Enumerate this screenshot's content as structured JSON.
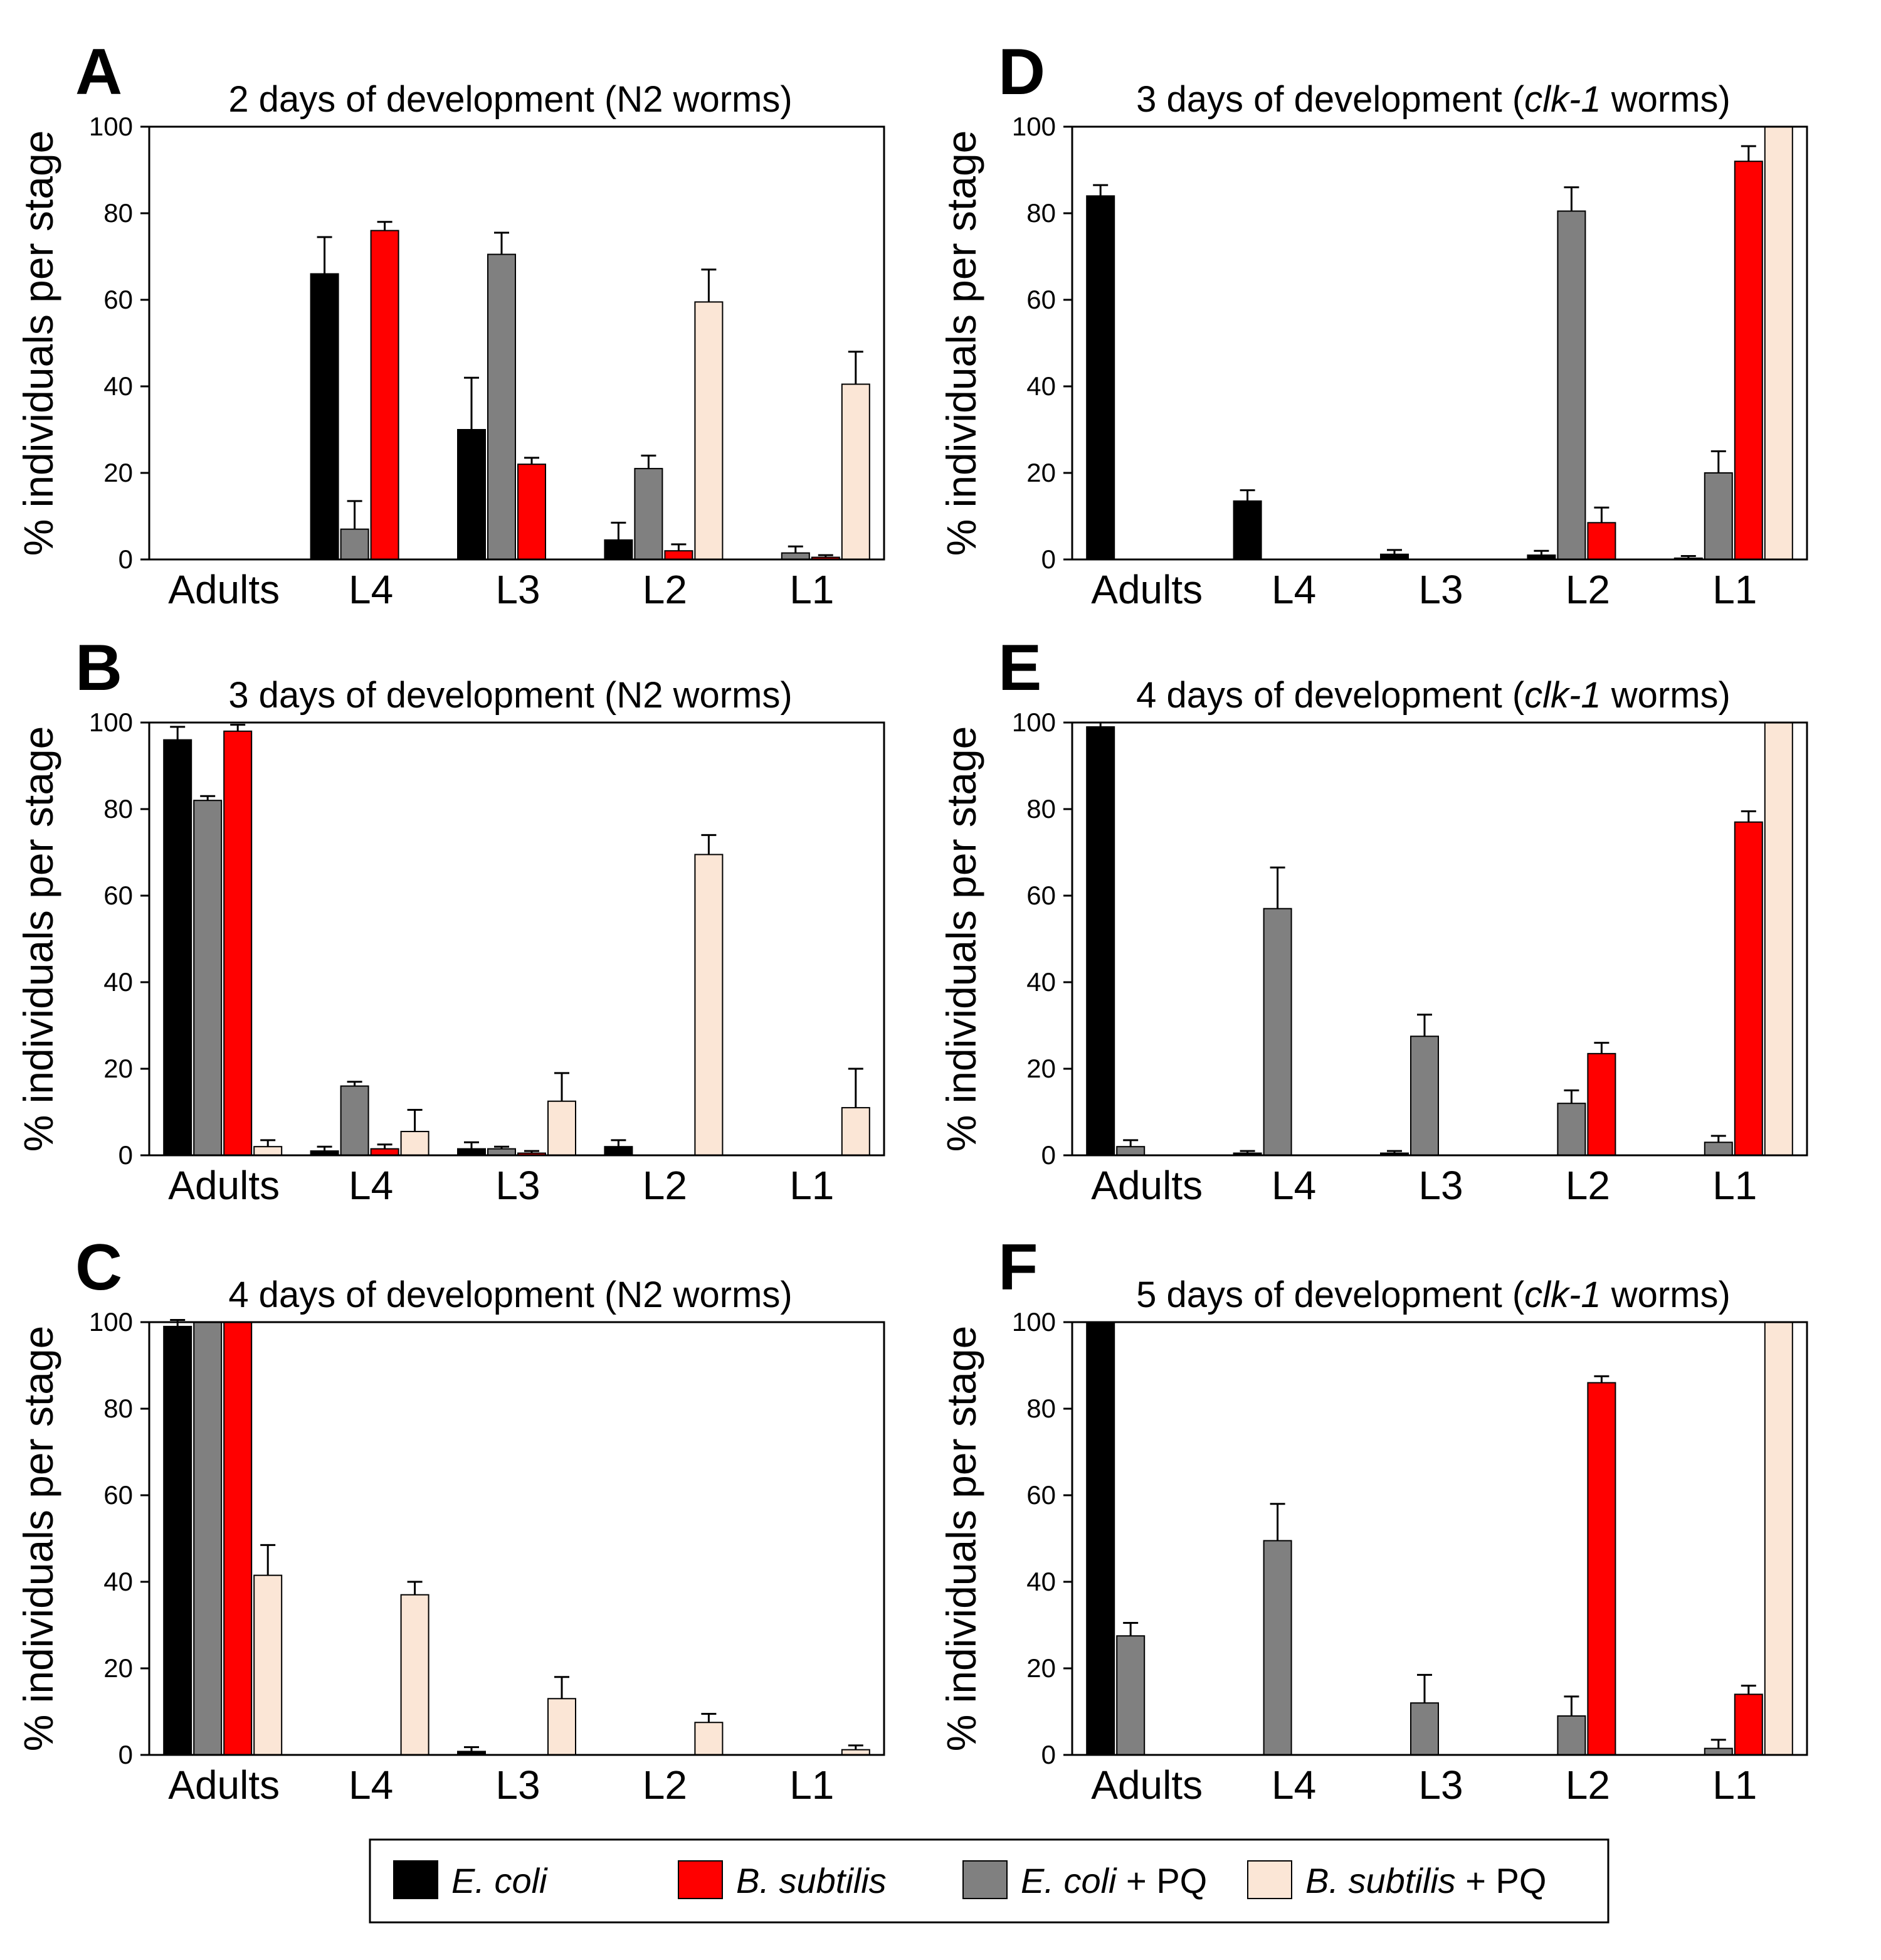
{
  "colors": {
    "E. coli": "#000000",
    "B. subtilis": "#ff0000",
    "E. coli + PQ": "#808080",
    "B. subtilis + PQ": "#fbe6d6"
  },
  "legend": [
    {
      "key": "E. coli",
      "parts": [
        {
          "text": "E. coli",
          "italic": true
        }
      ]
    },
    {
      "key": "B. subtilis",
      "parts": [
        {
          "text": "B. subtilis",
          "italic": true
        }
      ]
    },
    {
      "key": "E. coli + PQ",
      "parts": [
        {
          "text": "E. coli",
          "italic": true
        },
        {
          "text": " + PQ",
          "italic": false
        }
      ]
    },
    {
      "key": "B. subtilis + PQ",
      "parts": [
        {
          "text": "B. subtilis",
          "italic": true
        },
        {
          "text": " + PQ",
          "italic": false
        }
      ]
    }
  ],
  "chart_data": [
    {
      "panel": "A",
      "type": "bar",
      "title": "2 days of development (N2 worms)",
      "title_parts": [
        {
          "text": "2 days of development (N2 worms)",
          "italic": false
        }
      ],
      "ylabel": "% individuals per stage",
      "ylim": [
        0,
        100
      ],
      "yticks": [
        0,
        20,
        40,
        60,
        80,
        100
      ],
      "categories": [
        "Adults",
        "L4",
        "L3",
        "L2",
        "L1"
      ],
      "series": [
        {
          "name": "E. coli",
          "values": [
            0,
            66,
            30,
            4.5,
            0
          ],
          "errors": [
            0,
            8.5,
            12,
            4,
            0
          ]
        },
        {
          "name": "E. coli + PQ",
          "values": [
            0,
            7,
            70.5,
            21,
            1.5
          ],
          "errors": [
            0,
            6.5,
            5,
            3,
            1.5
          ]
        },
        {
          "name": "B. subtilis",
          "values": [
            0,
            76,
            22,
            2,
            0.5
          ],
          "errors": [
            0,
            2,
            1.5,
            1.5,
            0.5
          ]
        },
        {
          "name": "B. subtilis + PQ",
          "values": [
            0,
            0,
            0,
            59.5,
            40.5
          ],
          "errors": [
            0,
            0,
            0,
            7.5,
            7.5
          ]
        }
      ]
    },
    {
      "panel": "B",
      "type": "bar",
      "title": "3 days of development (N2 worms)",
      "title_parts": [
        {
          "text": "3 days of development (N2 worms)",
          "italic": false
        }
      ],
      "ylabel": "% individuals per stage",
      "ylim": [
        0,
        100
      ],
      "yticks": [
        0,
        20,
        40,
        60,
        80,
        100
      ],
      "categories": [
        "Adults",
        "L4",
        "L3",
        "L2",
        "L1"
      ],
      "series": [
        {
          "name": "E. coli",
          "values": [
            96,
            1,
            1.5,
            2,
            0
          ],
          "errors": [
            3,
            1,
            1.5,
            1.5,
            0
          ]
        },
        {
          "name": "E. coli + PQ",
          "values": [
            82,
            16,
            1.5,
            0,
            0
          ],
          "errors": [
            1,
            1,
            0.5,
            0,
            0
          ]
        },
        {
          "name": "B. subtilis",
          "values": [
            98,
            1.5,
            0.5,
            0,
            0
          ],
          "errors": [
            1.5,
            1,
            0.5,
            0,
            0
          ]
        },
        {
          "name": "B. subtilis + PQ",
          "values": [
            2,
            5.5,
            12.5,
            69.5,
            11
          ],
          "errors": [
            1.5,
            5,
            6.5,
            4.5,
            9
          ]
        }
      ]
    },
    {
      "panel": "C",
      "type": "bar",
      "title": "4 days of development (N2 worms)",
      "title_parts": [
        {
          "text": "4 days of development (N2 worms)",
          "italic": false
        }
      ],
      "ylabel": "% individuals per stage",
      "ylim": [
        0,
        100
      ],
      "yticks": [
        0,
        20,
        40,
        60,
        80,
        100
      ],
      "categories": [
        "Adults",
        "L4",
        "L3",
        "L2",
        "L1"
      ],
      "series": [
        {
          "name": "E. coli",
          "values": [
            99,
            0,
            0.8,
            0,
            0
          ],
          "errors": [
            1.5,
            0,
            1,
            0,
            0
          ]
        },
        {
          "name": "E. coli + PQ",
          "values": [
            100,
            0,
            0,
            0,
            0
          ],
          "errors": [
            0,
            0,
            0,
            0,
            0
          ]
        },
        {
          "name": "B. subtilis",
          "values": [
            100,
            0,
            0,
            0,
            0
          ],
          "errors": [
            0,
            0,
            0,
            0,
            0
          ]
        },
        {
          "name": "B. subtilis + PQ",
          "values": [
            41.5,
            37,
            13,
            7.5,
            1.2
          ],
          "errors": [
            7,
            3,
            5,
            2,
            1
          ]
        }
      ]
    },
    {
      "panel": "D",
      "type": "bar",
      "title": "3 days of development (clk-1 worms)",
      "title_parts": [
        {
          "text": "3 days of development (",
          "italic": false
        },
        {
          "text": "clk-1",
          "italic": true
        },
        {
          "text": " worms)",
          "italic": false
        }
      ],
      "ylabel": "% individuals per stage",
      "ylim": [
        0,
        100
      ],
      "yticks": [
        0,
        20,
        40,
        60,
        80,
        100
      ],
      "categories": [
        "Adults",
        "L4",
        "L3",
        "L2",
        "L1"
      ],
      "series": [
        {
          "name": "E. coli",
          "values": [
            84,
            13.5,
            1.2,
            1,
            0.3
          ],
          "errors": [
            2.5,
            2.5,
            1,
            1,
            0.5
          ]
        },
        {
          "name": "E. coli + PQ",
          "values": [
            0,
            0,
            0,
            80.5,
            20
          ],
          "errors": [
            0,
            0,
            0,
            5.5,
            5
          ]
        },
        {
          "name": "B. subtilis",
          "values": [
            0,
            0,
            0,
            8.5,
            92
          ],
          "errors": [
            0,
            0,
            0,
            3.5,
            3.5
          ]
        },
        {
          "name": "B. subtilis + PQ",
          "values": [
            0,
            0,
            0,
            0,
            100
          ],
          "errors": [
            0,
            0,
            0,
            0,
            0
          ]
        }
      ]
    },
    {
      "panel": "E",
      "type": "bar",
      "title": "4 days of development (clk-1 worms)",
      "title_parts": [
        {
          "text": "4 days of development (",
          "italic": false
        },
        {
          "text": "clk-1",
          "italic": true
        },
        {
          "text": " worms)",
          "italic": false
        }
      ],
      "ylabel": "% individuals per stage",
      "ylim": [
        0,
        100
      ],
      "yticks": [
        0,
        20,
        40,
        60,
        80,
        100
      ],
      "categories": [
        "Adults",
        "L4",
        "L3",
        "L2",
        "L1"
      ],
      "series": [
        {
          "name": "E. coli",
          "values": [
            99,
            0.5,
            0.5,
            0,
            0
          ],
          "errors": [
            1,
            0.5,
            0.5,
            0,
            0
          ]
        },
        {
          "name": "E. coli + PQ",
          "values": [
            2,
            57,
            27.5,
            12,
            3
          ],
          "errors": [
            1.5,
            9.5,
            5,
            3,
            1.5
          ]
        },
        {
          "name": "B. subtilis",
          "values": [
            0,
            0,
            0,
            23.5,
            77
          ],
          "errors": [
            0,
            0,
            0,
            2.5,
            2.5
          ]
        },
        {
          "name": "B. subtilis + PQ",
          "values": [
            0,
            0,
            0,
            0,
            100
          ],
          "errors": [
            0,
            0,
            0,
            0,
            0
          ]
        }
      ]
    },
    {
      "panel": "F",
      "type": "bar",
      "title": "5 days of development (clk-1 worms)",
      "title_parts": [
        {
          "text": "5 days of development (",
          "italic": false
        },
        {
          "text": "clk-1",
          "italic": true
        },
        {
          "text": " worms)",
          "italic": false
        }
      ],
      "ylabel": "% individuals per stage",
      "ylim": [
        0,
        100
      ],
      "yticks": [
        0,
        20,
        40,
        60,
        80,
        100
      ],
      "categories": [
        "Adults",
        "L4",
        "L3",
        "L2",
        "L1"
      ],
      "series": [
        {
          "name": "E. coli",
          "values": [
            100,
            0,
            0,
            0,
            0
          ],
          "errors": [
            0,
            0,
            0,
            0,
            0
          ]
        },
        {
          "name": "E. coli + PQ",
          "values": [
            27.5,
            49.5,
            12,
            9,
            1.5
          ],
          "errors": [
            3,
            8.5,
            6.5,
            4.5,
            2
          ]
        },
        {
          "name": "B. subtilis",
          "values": [
            0,
            0,
            0,
            86,
            14
          ],
          "errors": [
            0,
            0,
            0,
            1.5,
            2
          ]
        },
        {
          "name": "B. subtilis + PQ",
          "values": [
            0,
            0,
            0,
            0,
            100
          ],
          "errors": [
            0,
            0,
            0,
            0,
            0
          ]
        }
      ]
    }
  ]
}
